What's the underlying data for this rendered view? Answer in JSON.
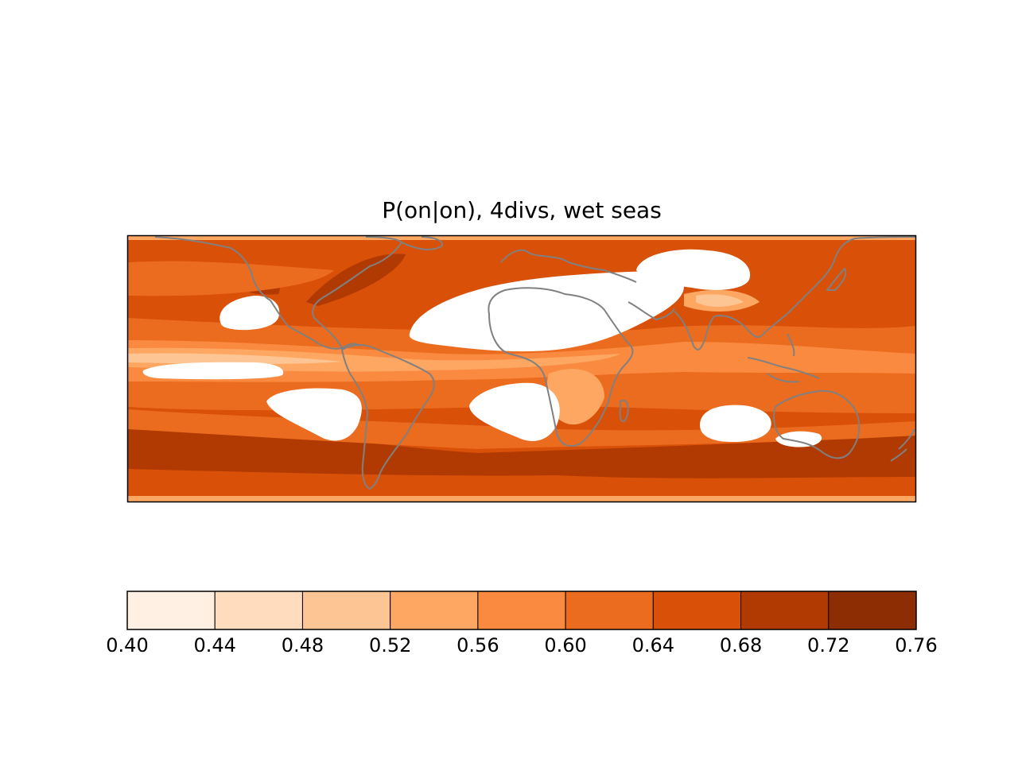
{
  "figure": {
    "title": "P(on|on), 4divs, wet seas"
  },
  "chart_data": {
    "type": "heatmap",
    "title": "P(on|on), 4divs, wet seas",
    "projection": "global map (cylindrical), coastlines in grey",
    "value_description": "filled contour field",
    "colorbar": {
      "orientation": "horizontal",
      "levels": [
        0.4,
        0.44,
        0.48,
        0.52,
        0.56,
        0.6,
        0.64,
        0.68,
        0.72,
        0.76
      ],
      "tick_labels": [
        "0.40",
        "0.44",
        "0.48",
        "0.52",
        "0.56",
        "0.60",
        "0.64",
        "0.68",
        "0.72",
        "0.76"
      ],
      "colors": [
        "#fff0e3",
        "#fedcbd",
        "#fdc593",
        "#fda762",
        "#f98a40",
        "#ec6c1f",
        "#d95009",
        "#b13a03",
        "#8d2d04"
      ]
    },
    "masked_color": "#ffffff",
    "coastline_color": "#808080",
    "grid": false
  }
}
